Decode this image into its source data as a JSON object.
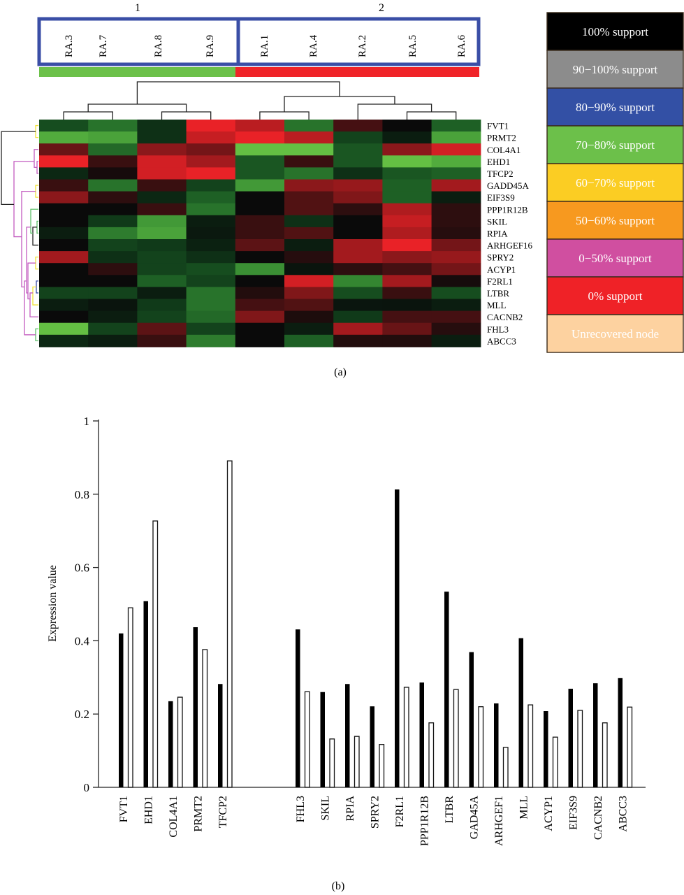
{
  "panel_labels": {
    "a": "(a)",
    "b": "(b)"
  },
  "chart_data": [
    {
      "type": "heatmap",
      "title": "",
      "cluster_labels": [
        "1",
        "2"
      ],
      "columns": [
        "RA.3",
        "RA.7",
        "RA.8",
        "RA.9",
        "RA.1",
        "RA.4",
        "RA.2",
        "RA.5",
        "RA.6"
      ],
      "column_clusters": [
        1,
        1,
        1,
        1,
        2,
        2,
        2,
        2,
        2
      ],
      "column_bar_colors": [
        "#6cc14a",
        "#6cc14a",
        "#6cc14a",
        "#6cc14a",
        "#f02428",
        "#f02428",
        "#f02428",
        "#f02428",
        "#f02428"
      ],
      "rows": [
        "FVT1",
        "PRMT2",
        "COL4A1",
        "EHD1",
        "TFCP2",
        "GADD45A",
        "EIF3S9",
        "PPP1R12B",
        "SKIL",
        "RPIA",
        "ARHGEF16",
        "SPRY2",
        "ACYP1",
        "F2RL1",
        "LTBR",
        "MLL",
        "CACNB2",
        "FHL3",
        "ABCC3"
      ],
      "value_scale": "green = negative, black = zero, red = positive (approximate, -1..1)",
      "values": [
        [
          -0.35,
          -0.55,
          -0.2,
          0.95,
          0.75,
          -0.55,
          0.25,
          0.0,
          -0.45
        ],
        [
          -0.85,
          -0.8,
          -0.2,
          0.8,
          0.95,
          0.75,
          -0.3,
          -0.1,
          -0.8
        ],
        [
          0.4,
          -0.5,
          0.55,
          0.45,
          -0.95,
          -0.95,
          -0.4,
          0.55,
          0.85
        ],
        [
          0.95,
          0.2,
          0.85,
          0.65,
          -0.4,
          0.2,
          -0.4,
          -0.95,
          -0.85
        ],
        [
          -0.15,
          0.05,
          0.85,
          0.95,
          -0.4,
          -0.55,
          -0.2,
          -0.4,
          -0.45
        ],
        [
          0.2,
          -0.55,
          0.2,
          -0.3,
          -0.75,
          0.55,
          0.6,
          -0.45,
          0.65
        ],
        [
          0.55,
          0.15,
          -0.15,
          -0.45,
          0.0,
          0.3,
          0.5,
          -0.45,
          -0.1
        ],
        [
          0.0,
          0.0,
          0.2,
          -0.55,
          0.0,
          0.3,
          0.15,
          0.7,
          0.15
        ],
        [
          0.0,
          -0.25,
          -0.75,
          -0.1,
          0.2,
          -0.2,
          0.0,
          0.8,
          0.15
        ],
        [
          -0.1,
          -0.6,
          -0.8,
          -0.08,
          0.2,
          0.3,
          0.0,
          0.7,
          0.12
        ],
        [
          0.0,
          -0.3,
          -0.25,
          -0.12,
          0.35,
          -0.1,
          0.65,
          0.95,
          0.45
        ],
        [
          0.65,
          -0.2,
          -0.3,
          -0.2,
          0.0,
          0.12,
          0.65,
          0.55,
          0.6
        ],
        [
          0.0,
          0.15,
          -0.3,
          -0.35,
          -0.7,
          -0.05,
          0.15,
          0.25,
          0.45
        ],
        [
          0.0,
          0.0,
          -0.45,
          -0.3,
          0.0,
          0.85,
          -0.65,
          0.65,
          0.05
        ],
        [
          -0.3,
          -0.3,
          -0.1,
          -0.55,
          0.1,
          0.5,
          -0.35,
          0.2,
          -0.35
        ],
        [
          -0.1,
          -0.05,
          -0.25,
          -0.55,
          0.25,
          0.3,
          -0.06,
          -0.05,
          -0.1
        ],
        [
          0.0,
          -0.1,
          -0.3,
          -0.5,
          0.5,
          0.08,
          -0.25,
          0.25,
          0.25
        ],
        [
          -0.95,
          -0.3,
          0.35,
          -0.3,
          0.0,
          -0.1,
          0.65,
          0.4,
          0.12
        ],
        [
          -0.15,
          -0.1,
          0.2,
          -0.6,
          0.0,
          -0.45,
          0.1,
          0.1,
          -0.1
        ]
      ],
      "legend": [
        {
          "label": "100% support",
          "color": "#000000",
          "text_color": "#ffffff"
        },
        {
          "label": "90−100% support",
          "color": "#8c8c8c",
          "text_color": "#ffffff"
        },
        {
          "label": "80−90% support",
          "color": "#3350a5",
          "text_color": "#ffffff"
        },
        {
          "label": "70−80% support",
          "color": "#6cc04a",
          "text_color": "#ffffff"
        },
        {
          "label": "60−70% support",
          "color": "#fbcd23",
          "text_color": "#ffffff"
        },
        {
          "label": "50−60% support",
          "color": "#f7991f",
          "text_color": "#ffffff"
        },
        {
          "label": "0−50% support",
          "color": "#d04fa0",
          "text_color": "#ffffff"
        },
        {
          "label": "0% support",
          "color": "#ef2227",
          "text_color": "#ffffff"
        },
        {
          "label": "Unrecovered node",
          "color": "#fdd2a0",
          "text_color": "#ffffff"
        }
      ],
      "legend_position": "right"
    },
    {
      "type": "bar",
      "title": "",
      "xlabel": "",
      "ylabel": "Expression value",
      "ylim": [
        0,
        1
      ],
      "yticks": [
        "0",
        "0.2",
        "0.4",
        "0.6",
        "0.8",
        "1"
      ],
      "ytick_values": [
        0,
        0.2,
        0.4,
        0.6,
        0.8,
        1
      ],
      "grid": false,
      "groups": [
        {
          "categories": [
            "FVT1",
            "EHD1",
            "COL4A1",
            "PRMT2",
            "TFCP2"
          ]
        },
        {
          "categories": [
            "FHL3",
            "SKIL",
            "RPIA",
            "SPRY2",
            "F2RL1",
            "PPP1R12B",
            "LTBR",
            "GAD45A",
            "ARHGEF1",
            "MLL",
            "ACYP1",
            "EIF3S9",
            "CACNB2",
            "ABCC3"
          ]
        }
      ],
      "categories": [
        "FVT1",
        "EHD1",
        "COL4A1",
        "PRMT2",
        "TFCP2",
        "FHL3",
        "SKIL",
        "RPIA",
        "SPRY2",
        "F2RL1",
        "PPP1R12B",
        "LTBR",
        "GAD45A",
        "ARHGEF1",
        "MLL",
        "ACYP1",
        "EIF3S9",
        "CACNB2",
        "ABCC3"
      ],
      "series": [
        {
          "name": "filled",
          "color": "#000000",
          "values": [
            0.42,
            0.508,
            0.235,
            0.437,
            0.282,
            0.431,
            0.26,
            0.282,
            0.221,
            0.813,
            0.286,
            0.534,
            0.369,
            0.229,
            0.407,
            0.208,
            0.269,
            0.284,
            0.298
          ]
        },
        {
          "name": "open",
          "color": "#ffffff",
          "values": [
            0.49,
            0.727,
            0.246,
            0.376,
            0.891,
            0.261,
            0.132,
            0.139,
            0.117,
            0.273,
            0.176,
            0.267,
            0.22,
            0.109,
            0.225,
            0.137,
            0.21,
            0.176,
            0.219
          ]
        }
      ]
    }
  ]
}
